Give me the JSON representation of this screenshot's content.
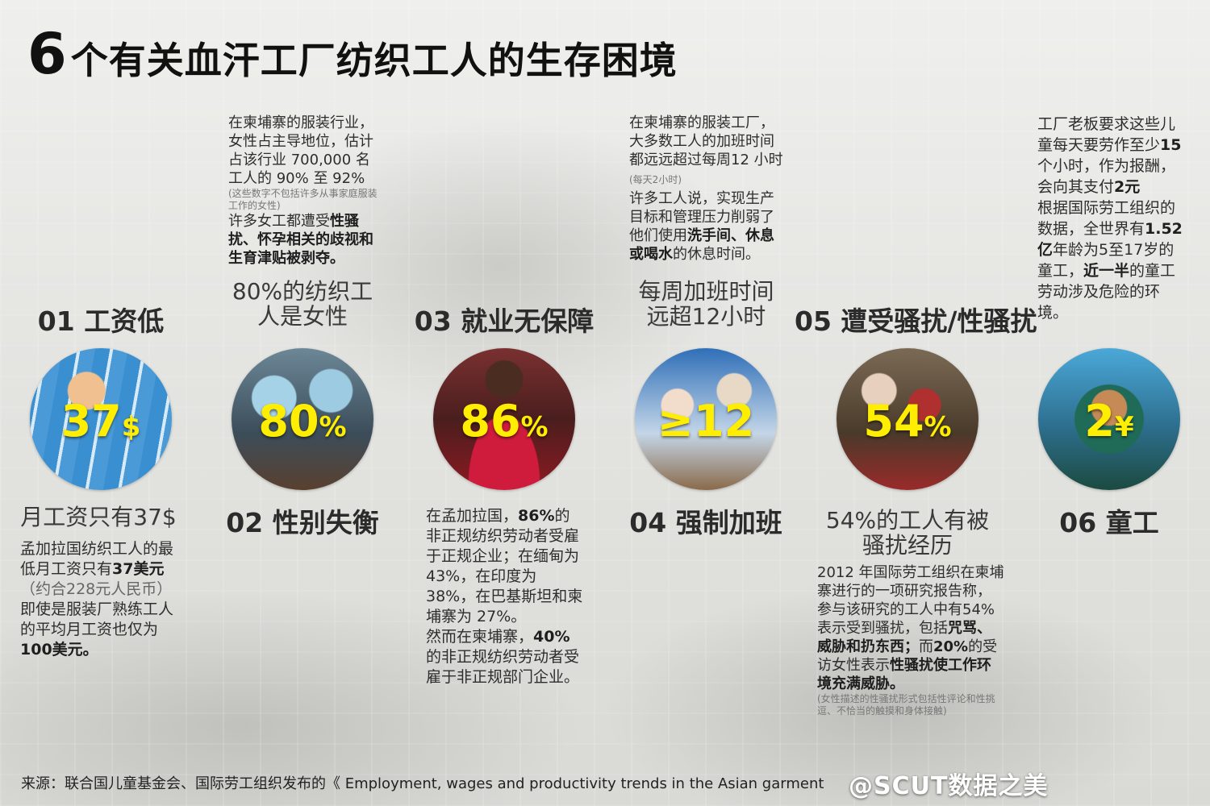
{
  "title": {
    "number": "6",
    "text": "个有关血汗工厂纺织工人的生存困境"
  },
  "items": [
    {
      "heading": "01 工资低",
      "stat": "37",
      "unit": "$",
      "subheading": "月工资只有37$",
      "text": {
        "a": "孟加拉国纺织工人的最低月工资只有",
        "b": "37美元",
        "c": "（约合228元人民币）",
        "d": "即使是服装厂熟练工人的平均月工资也仅为",
        "e": "100美元。"
      }
    },
    {
      "heading": "02 性别失衡",
      "stat": "80",
      "unit": "%",
      "subheading": "80%的纺织工人是女性",
      "text": {
        "a": "在柬埔寨的服装行业，女性占主导地位，估计占该行业 700,000 名工人的 90% 至 92%",
        "b": "(这些数字不包括许多从事家庭服装工作的女性)",
        "c": "许多女工都遭受",
        "d": "性骚扰、怀孕相关的歧视和生育津贴被剥夺。"
      }
    },
    {
      "heading": "03 就业无保障",
      "stat": "86",
      "unit": "%",
      "text": {
        "a": "在孟加拉国，",
        "b": "86%",
        "c": "的非正规纺织劳动者受雇于正规企业；在缅甸为43%，在印度为38%，在巴基斯坦和柬埔寨为 27%。",
        "d": "然而在柬埔寨，",
        "e": "40%",
        "f": "的非正规纺织劳动者受雇于非正规部门企业。"
      }
    },
    {
      "heading": "04 强制加班",
      "stat": "≥12",
      "unit": "",
      "subheading": "每周加班时间远超12小时",
      "text": {
        "a": "在柬埔寨的服装工厂，大多数工人的加班时间都远远超过每周12 小时",
        "b": "(每天2小时)",
        "c": "许多工人说，实现生产目标和管理压力削弱了他们使用",
        "d": "洗手间、休息或喝水",
        "e": "的休息时间。"
      }
    },
    {
      "heading": "05 遭受骚扰/性骚扰",
      "stat": "54",
      "unit": "%",
      "subheading": "54%的工人有被骚扰经历",
      "text": {
        "a": "2012 年国际劳工组织在柬埔寨进行的一项研究报告称，参与该研究的工人中有54% 表示受到骚扰，包括",
        "b": "咒骂、威胁和扔东西；",
        "c": "而",
        "d": "20%",
        "e": "的受访女性表示",
        "f": "性骚扰使工作环境充满威胁。",
        "g": "(女性描述的性骚扰形式包括性评论和性挑逗、不恰当的触摸和身体接触)"
      }
    },
    {
      "heading": "06 童工",
      "stat": "2",
      "unit": "¥",
      "text": {
        "a": "工厂老板要求这些儿童每天要劳作至少",
        "b": "15",
        "c": "个小时，作为报酬，会向其支付",
        "d": "2元",
        "e": "根据国际劳工组织的数据，全世界有",
        "f": "1.52亿",
        "g": "年龄为5至17岁的童工，",
        "h": "近一半",
        "i": "的童工劳动涉及危险的环境。"
      }
    }
  ],
  "source": "来源：联合国儿童基金会、国际劳工组织发布的《 Employment, wages and productivity  trends in the Asian garment",
  "watermark": "@SCUT数据之美"
}
